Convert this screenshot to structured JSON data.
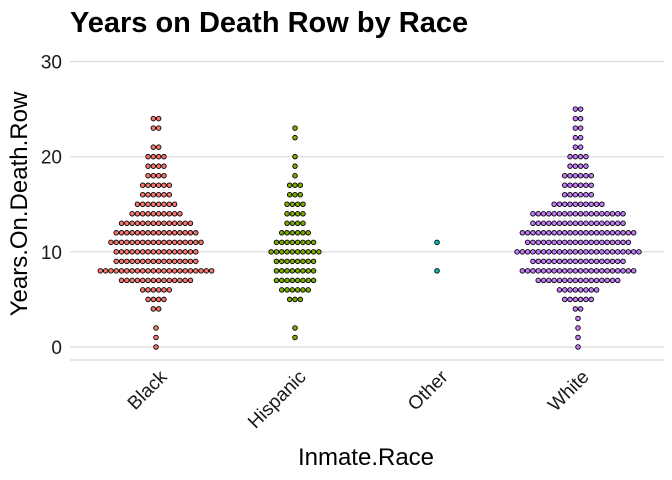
{
  "chart_data": {
    "type": "dotplot",
    "title": "Years on Death Row by Race",
    "xlabel": "Inmate.Race",
    "ylabel": "Years.On.Death.Row",
    "categories": [
      "Black",
      "Hispanic",
      "Other",
      "White"
    ],
    "ylim": [
      -1.5,
      30
    ],
    "y_ticks": [
      0,
      10,
      20,
      30
    ],
    "grid": "horizontal",
    "colors": [
      "#F8766D",
      "#7CAE00",
      "#00BFC4",
      "#C77CFF"
    ],
    "groups": [
      {
        "name": "Black",
        "counts": [
          {
            "y": 0,
            "n": 1
          },
          {
            "y": 1,
            "n": 1
          },
          {
            "y": 2,
            "n": 1
          },
          {
            "y": 4,
            "n": 2
          },
          {
            "y": 5,
            "n": 4
          },
          {
            "y": 6,
            "n": 6
          },
          {
            "y": 7,
            "n": 14
          },
          {
            "y": 8,
            "n": 22
          },
          {
            "y": 9,
            "n": 16
          },
          {
            "y": 10,
            "n": 16
          },
          {
            "y": 11,
            "n": 18
          },
          {
            "y": 12,
            "n": 16
          },
          {
            "y": 13,
            "n": 14
          },
          {
            "y": 14,
            "n": 10
          },
          {
            "y": 15,
            "n": 8
          },
          {
            "y": 16,
            "n": 6
          },
          {
            "y": 17,
            "n": 6
          },
          {
            "y": 18,
            "n": 4
          },
          {
            "y": 19,
            "n": 4
          },
          {
            "y": 20,
            "n": 4
          },
          {
            "y": 21,
            "n": 2
          },
          {
            "y": 23,
            "n": 2
          },
          {
            "y": 24,
            "n": 2
          }
        ]
      },
      {
        "name": "Hispanic",
        "counts": [
          {
            "y": 1,
            "n": 1
          },
          {
            "y": 2,
            "n": 1
          },
          {
            "y": 5,
            "n": 3
          },
          {
            "y": 6,
            "n": 6
          },
          {
            "y": 7,
            "n": 8
          },
          {
            "y": 8,
            "n": 8
          },
          {
            "y": 9,
            "n": 8
          },
          {
            "y": 10,
            "n": 10
          },
          {
            "y": 11,
            "n": 8
          },
          {
            "y": 12,
            "n": 6
          },
          {
            "y": 13,
            "n": 4
          },
          {
            "y": 14,
            "n": 4
          },
          {
            "y": 15,
            "n": 4
          },
          {
            "y": 16,
            "n": 3
          },
          {
            "y": 17,
            "n": 3
          },
          {
            "y": 18,
            "n": 1
          },
          {
            "y": 19,
            "n": 1
          },
          {
            "y": 20,
            "n": 1
          },
          {
            "y": 22,
            "n": 1
          },
          {
            "y": 23,
            "n": 1
          }
        ]
      },
      {
        "name": "Other",
        "counts": [
          {
            "y": 8,
            "n": 1
          },
          {
            "y": 11,
            "n": 1
          }
        ]
      },
      {
        "name": "White",
        "counts": [
          {
            "y": 0,
            "n": 1
          },
          {
            "y": 1,
            "n": 1
          },
          {
            "y": 2,
            "n": 1
          },
          {
            "y": 3,
            "n": 1
          },
          {
            "y": 4,
            "n": 2
          },
          {
            "y": 5,
            "n": 6
          },
          {
            "y": 6,
            "n": 8
          },
          {
            "y": 7,
            "n": 16
          },
          {
            "y": 8,
            "n": 22
          },
          {
            "y": 9,
            "n": 18
          },
          {
            "y": 10,
            "n": 24
          },
          {
            "y": 11,
            "n": 20
          },
          {
            "y": 12,
            "n": 22
          },
          {
            "y": 13,
            "n": 18
          },
          {
            "y": 14,
            "n": 18
          },
          {
            "y": 15,
            "n": 10
          },
          {
            "y": 16,
            "n": 6
          },
          {
            "y": 17,
            "n": 6
          },
          {
            "y": 18,
            "n": 6
          },
          {
            "y": 19,
            "n": 4
          },
          {
            "y": 20,
            "n": 4
          },
          {
            "y": 21,
            "n": 2
          },
          {
            "y": 22,
            "n": 2
          },
          {
            "y": 23,
            "n": 2
          },
          {
            "y": 24,
            "n": 2
          },
          {
            "y": 25,
            "n": 2
          }
        ]
      }
    ]
  }
}
